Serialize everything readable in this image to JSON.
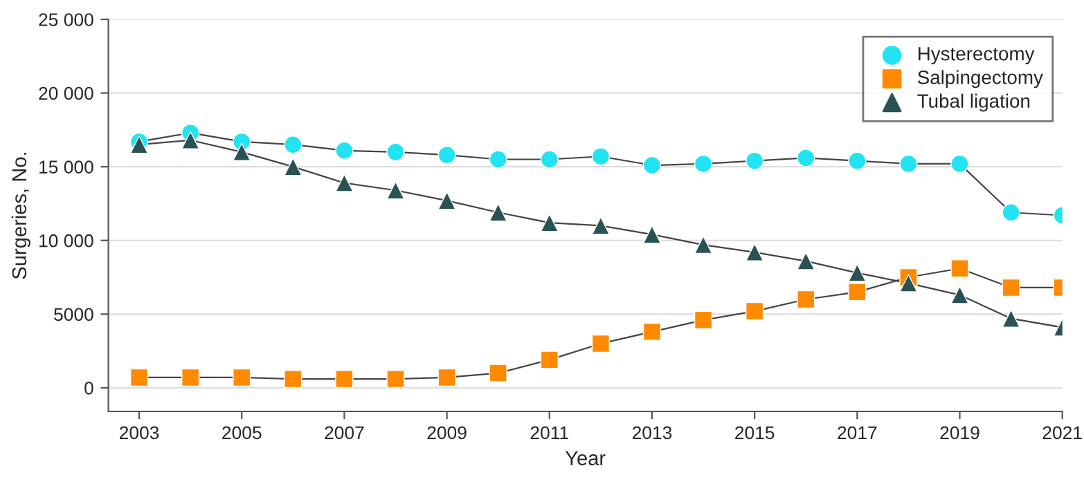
{
  "chart_data": {
    "type": "line",
    "xlabel": "Year",
    "ylabel": "Surgeries, No.",
    "x": [
      2003,
      2004,
      2005,
      2006,
      2007,
      2008,
      2009,
      2010,
      2011,
      2012,
      2013,
      2014,
      2015,
      2016,
      2017,
      2018,
      2019,
      2020,
      2021
    ],
    "series": [
      {
        "name": "Hysterectomy",
        "color": "#22e3f2",
        "marker": "circle",
        "values": [
          16700,
          17300,
          16700,
          16500,
          16100,
          16000,
          15800,
          15500,
          15500,
          15700,
          15100,
          15200,
          15400,
          15600,
          15400,
          15200,
          15200,
          11900,
          11700
        ]
      },
      {
        "name": "Salpingectomy",
        "color": "#ff8a00",
        "marker": "square",
        "values": [
          700,
          700,
          700,
          600,
          600,
          600,
          700,
          1000,
          1900,
          3000,
          3800,
          4600,
          5200,
          6000,
          6500,
          7500,
          8100,
          6800,
          6800
        ]
      },
      {
        "name": "Tubal ligation",
        "color": "#2a5252",
        "marker": "triangle",
        "values": [
          16500,
          16800,
          16000,
          15000,
          13900,
          13400,
          12700,
          11900,
          11200,
          11000,
          10400,
          9700,
          9200,
          8600,
          7800,
          7100,
          6300,
          4700,
          4100
        ]
      }
    ],
    "xlim": [
      2002.4,
      2021
    ],
    "xticks": [
      2003,
      2005,
      2007,
      2009,
      2011,
      2013,
      2015,
      2017,
      2019,
      2021
    ],
    "ylim": [
      -1600,
      25000
    ],
    "yticks": [
      0,
      5000,
      {
        "value": 10000,
        "label": "10 000"
      },
      {
        "value": 15000,
        "label": "15 000"
      },
      {
        "value": 20000,
        "label": "20 000"
      },
      {
        "value": 25000,
        "label": "25 000"
      }
    ],
    "grid": "y",
    "legend": "top right",
    "line_style": "solid"
  }
}
